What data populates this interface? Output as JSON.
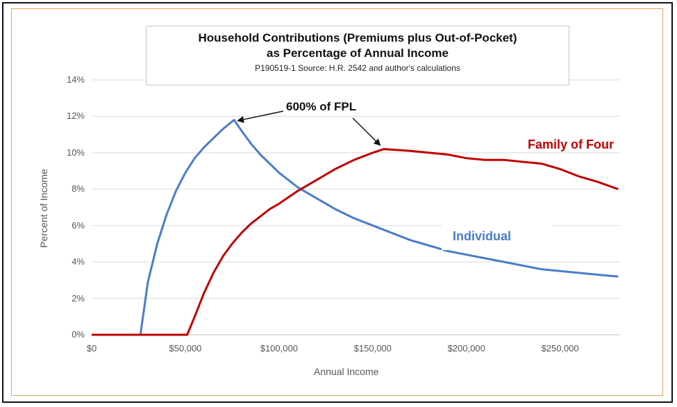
{
  "chart_data": {
    "type": "line",
    "title_line1": "Household Contributions (Premiums plus Out-of-Pocket)",
    "title_line2": "as Percentage of Annual Income",
    "subtitle": "P190519-1 Source: H.R. 2542 and author's calculations",
    "xlabel": "Annual Income",
    "ylabel": "Percent of Income",
    "xlim": [
      0,
      282000
    ],
    "ylim": [
      0,
      14
    ],
    "x_tick_labels": [
      "$0",
      "$50,000",
      "$100,000",
      "$150,000",
      "$200,000",
      "$250,000"
    ],
    "x_tick_values": [
      0,
      50000,
      100000,
      150000,
      200000,
      250000
    ],
    "y_tick_labels": [
      "0%",
      "2%",
      "4%",
      "6%",
      "8%",
      "10%",
      "12%",
      "14%"
    ],
    "y_tick_values": [
      0,
      2,
      4,
      6,
      8,
      10,
      12,
      14
    ],
    "grid": "horizontal",
    "annotation": "600% of FPL",
    "series": [
      {
        "name": "Individual",
        "color": "#4a7cc9",
        "points": [
          [
            0,
            0
          ],
          [
            10000,
            0
          ],
          [
            20000,
            0
          ],
          [
            26000,
            0
          ],
          [
            30000,
            2.9
          ],
          [
            35000,
            5.0
          ],
          [
            40000,
            6.6
          ],
          [
            45000,
            7.9
          ],
          [
            50000,
            8.9
          ],
          [
            55000,
            9.7
          ],
          [
            60000,
            10.3
          ],
          [
            65000,
            10.8
          ],
          [
            70000,
            11.3
          ],
          [
            76000,
            11.8
          ],
          [
            80000,
            11.2
          ],
          [
            85000,
            10.5
          ],
          [
            90000,
            9.9
          ],
          [
            95000,
            9.4
          ],
          [
            100000,
            8.9
          ],
          [
            110000,
            8.1
          ],
          [
            120000,
            7.5
          ],
          [
            130000,
            6.9
          ],
          [
            140000,
            6.4
          ],
          [
            150000,
            6.0
          ],
          [
            160000,
            5.6
          ],
          [
            170000,
            5.2
          ],
          [
            180000,
            4.9
          ],
          [
            190000,
            4.6
          ],
          [
            200000,
            4.4
          ],
          [
            210000,
            4.2
          ],
          [
            220000,
            4.0
          ],
          [
            230000,
            3.8
          ],
          [
            240000,
            3.6
          ],
          [
            250000,
            3.5
          ],
          [
            260000,
            3.4
          ],
          [
            270000,
            3.3
          ],
          [
            281000,
            3.2
          ]
        ]
      },
      {
        "name": "Family of Four",
        "color": "#c00000",
        "points": [
          [
            0,
            0
          ],
          [
            20000,
            0
          ],
          [
            40000,
            0
          ],
          [
            51000,
            0
          ],
          [
            55000,
            1.0
          ],
          [
            60000,
            2.3
          ],
          [
            65000,
            3.4
          ],
          [
            70000,
            4.3
          ],
          [
            75000,
            5.0
          ],
          [
            80000,
            5.6
          ],
          [
            85000,
            6.1
          ],
          [
            90000,
            6.5
          ],
          [
            95000,
            6.9
          ],
          [
            100000,
            7.2
          ],
          [
            110000,
            7.9
          ],
          [
            120000,
            8.5
          ],
          [
            130000,
            9.1
          ],
          [
            140000,
            9.6
          ],
          [
            150000,
            10.0
          ],
          [
            156000,
            10.2
          ],
          [
            170000,
            10.1
          ],
          [
            180000,
            10.0
          ],
          [
            190000,
            9.9
          ],
          [
            200000,
            9.7
          ],
          [
            210000,
            9.6
          ],
          [
            220000,
            9.6
          ],
          [
            230000,
            9.5
          ],
          [
            240000,
            9.4
          ],
          [
            250000,
            9.1
          ],
          [
            260000,
            8.7
          ],
          [
            270000,
            8.4
          ],
          [
            281000,
            8.0
          ]
        ]
      }
    ]
  }
}
